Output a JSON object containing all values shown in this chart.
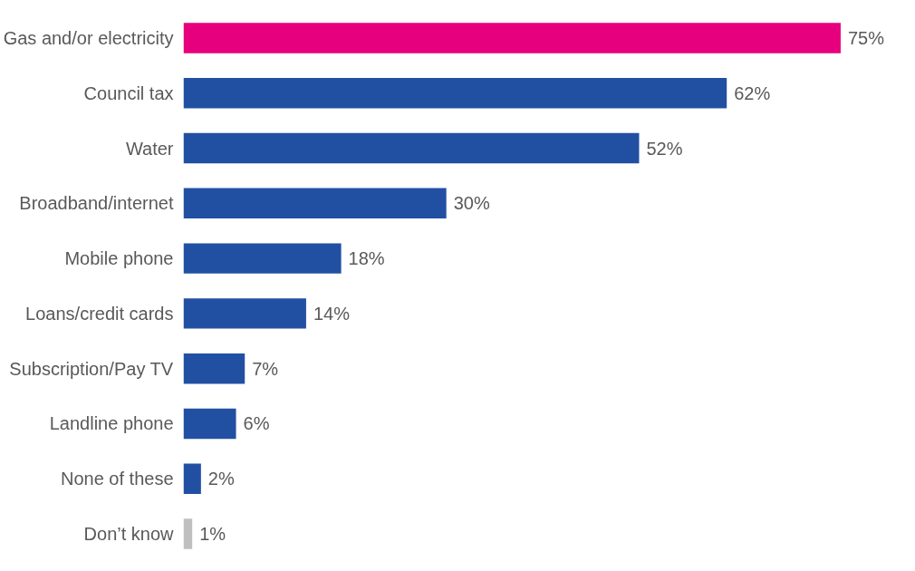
{
  "chart_data": {
    "type": "bar",
    "orientation": "horizontal",
    "categories": [
      "Gas and/or electricity",
      "Council tax",
      "Water",
      "Broadband/internet",
      "Mobile phone",
      "Loans/credit cards",
      "Subscription/Pay TV",
      "Landline phone",
      "None of these",
      "Don’t know"
    ],
    "values": [
      75,
      62,
      52,
      30,
      18,
      14,
      7,
      6,
      2,
      1
    ],
    "colors": [
      "#e6007e",
      "#2150a3",
      "#2150a3",
      "#2150a3",
      "#2150a3",
      "#2150a3",
      "#2150a3",
      "#2150a3",
      "#2150a3",
      "#bfbfbf"
    ],
    "value_labels": [
      "75%",
      "62%",
      "52%",
      "30%",
      "18%",
      "14%",
      "7%",
      "6%",
      "2%",
      "1%"
    ],
    "grid": false
  }
}
